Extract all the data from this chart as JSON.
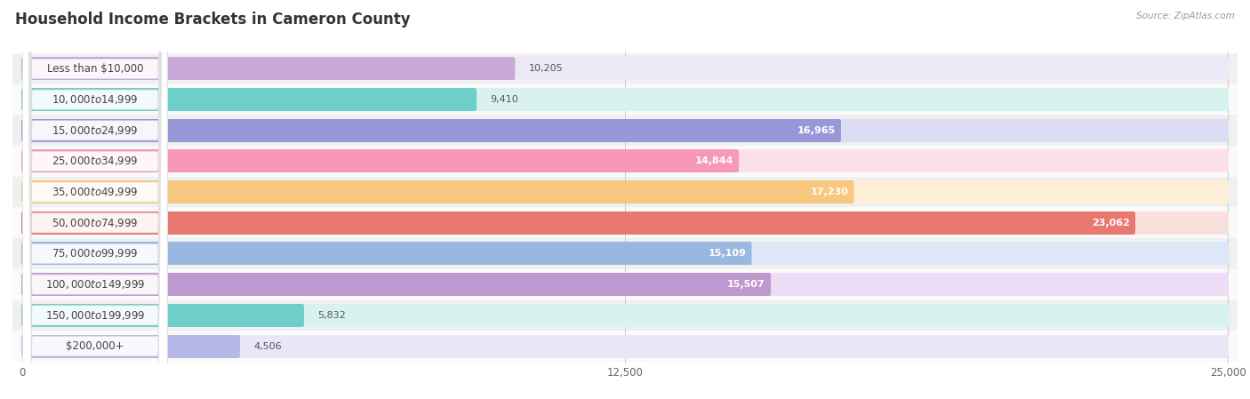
{
  "title": "Household Income Brackets in Cameron County",
  "source": "Source: ZipAtlas.com",
  "categories": [
    "Less than $10,000",
    "$10,000 to $14,999",
    "$15,000 to $24,999",
    "$25,000 to $34,999",
    "$35,000 to $49,999",
    "$50,000 to $74,999",
    "$75,000 to $99,999",
    "$100,000 to $149,999",
    "$150,000 to $199,999",
    "$200,000+"
  ],
  "values": [
    10205,
    9410,
    16965,
    14844,
    17230,
    23062,
    15109,
    15507,
    5832,
    4506
  ],
  "bar_colors": [
    "#c8a8d8",
    "#6ececa",
    "#9898d8",
    "#f898b8",
    "#f8c880",
    "#e87870",
    "#98b8e0",
    "#c098d0",
    "#6ececa",
    "#b8b8e8"
  ],
  "bar_bg_colors": [
    "#ede8f5",
    "#d8f2f0",
    "#dcdcf2",
    "#fce0ec",
    "#fef0d8",
    "#f8e0dc",
    "#dce8f8",
    "#ecdcf5",
    "#d8f2f0",
    "#e8e8f8"
  ],
  "row_bg_colors": [
    "#f0f0f0",
    "#fafafa",
    "#f0f0f0",
    "#fafafa",
    "#f0f0f0",
    "#fafafa",
    "#f0f0f0",
    "#fafafa",
    "#f0f0f0",
    "#fafafa"
  ],
  "xlim_max": 25000,
  "xticks": [
    0,
    12500,
    25000
  ],
  "xticklabels": [
    "0",
    "12,500",
    "25,000"
  ],
  "value_label_inside_threshold": 12000,
  "background_color": "#ffffff",
  "title_fontsize": 12,
  "label_fontsize": 8.5,
  "value_fontsize": 8.0,
  "tick_fontsize": 8.5
}
